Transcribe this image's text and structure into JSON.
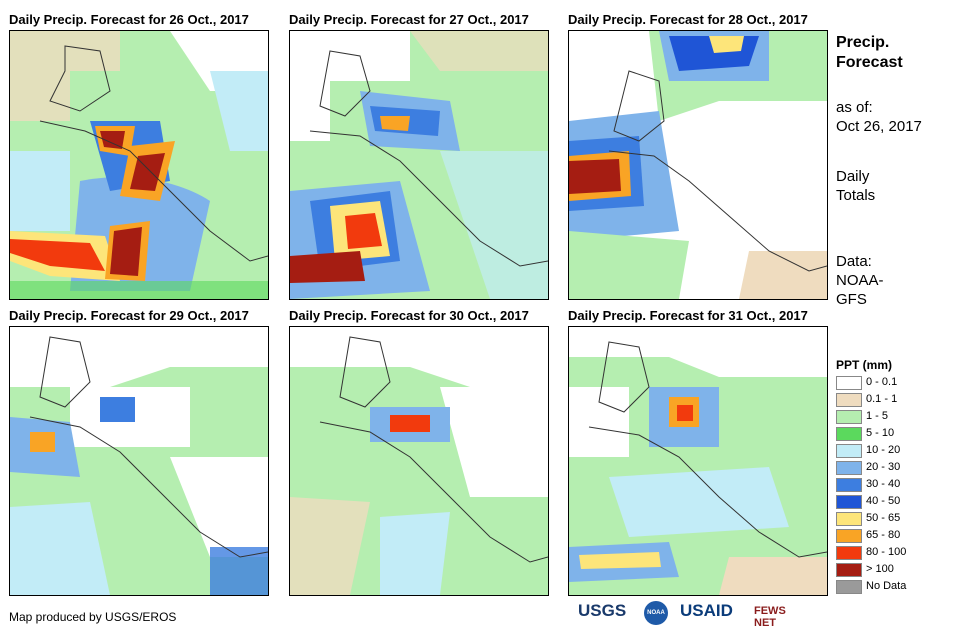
{
  "panels": [
    {
      "title": "Daily Precip. Forecast for 26 Oct., 2017"
    },
    {
      "title": "Daily Precip. Forecast for 27 Oct., 2017"
    },
    {
      "title": "Daily Precip. Forecast for 28 Oct., 2017"
    },
    {
      "title": "Daily Precip. Forecast for 29 Oct., 2017"
    },
    {
      "title": "Daily Precip. Forecast for 30 Oct., 2017"
    },
    {
      "title": "Daily Precip. Forecast for 31 Oct., 2017"
    }
  ],
  "sidebar": {
    "heading_line1": "Precip.",
    "heading_line2": "Forecast",
    "asof_line1": "as of:",
    "asof_line2": "Oct 26, 2017",
    "totals_line1": "Daily",
    "totals_line2": "Totals",
    "data_line1": "Data:",
    "data_line2": "NOAA-",
    "data_line3": "GFS"
  },
  "legend": {
    "title": "PPT (mm)",
    "items": [
      {
        "label": "0 - 0.1",
        "color": "#ffffff"
      },
      {
        "label": "0.1 - 1",
        "color": "#efdcbf"
      },
      {
        "label": "1 - 5",
        "color": "#b5eeb0"
      },
      {
        "label": "5 - 10",
        "color": "#5bd95d"
      },
      {
        "label": "10 - 20",
        "color": "#c2ecf7"
      },
      {
        "label": "20 - 30",
        "color": "#7fb3ea"
      },
      {
        "label": "30 - 40",
        "color": "#3d7ee0"
      },
      {
        "label": "40 - 50",
        "color": "#1f55d6"
      },
      {
        "label": "50 - 65",
        "color": "#fde57a"
      },
      {
        "label": "65 - 80",
        "color": "#f9a425"
      },
      {
        "label": "80 - 100",
        "color": "#f23a0d"
      },
      {
        "label": "> 100",
        "color": "#a51d12"
      },
      {
        "label": "No Data",
        "color": "#9a9a9a"
      }
    ]
  },
  "footer": {
    "credit": "Map produced by USGS/EROS",
    "logos": [
      "USGS",
      "NOAA",
      "USAID",
      "FEWS NET"
    ]
  }
}
